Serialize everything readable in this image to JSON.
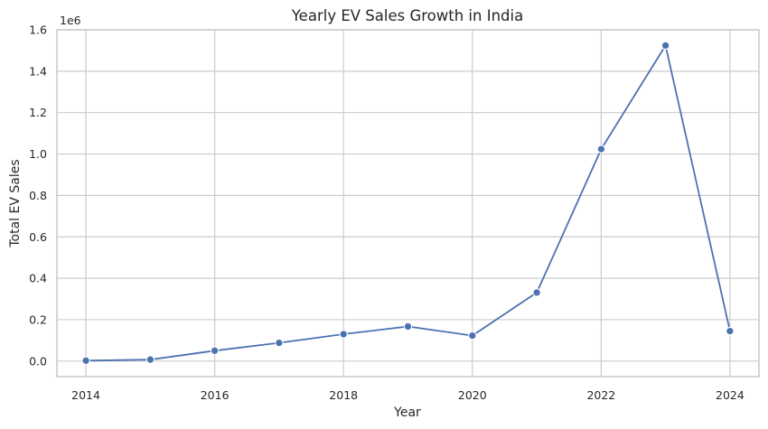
{
  "chart_data": {
    "type": "line",
    "title": "Yearly EV Sales Growth in India",
    "xlabel": "Year",
    "ylabel": "Total EV Sales",
    "y_offset_label": "1e6",
    "xlim": [
      2013.55,
      2024.45
    ],
    "ylim": [
      -75000,
      1600000
    ],
    "x_ticks": [
      2014,
      2016,
      2018,
      2020,
      2022,
      2024
    ],
    "y_ticks": [
      0.0,
      0.2,
      0.4,
      0.6,
      0.8,
      1.0,
      1.2,
      1.4,
      1.6
    ],
    "y_tick_scale": 1000000,
    "grid": true,
    "series": [
      {
        "x": [
          2014,
          2015,
          2016,
          2017,
          2018,
          2019,
          2020,
          2021,
          2022,
          2023,
          2024
        ],
        "values": [
          2000,
          7000,
          50000,
          88000,
          130000,
          167000,
          123000,
          331000,
          1024000,
          1524000,
          145000
        ],
        "color": "#4c72b0",
        "marker": "circle"
      }
    ]
  }
}
